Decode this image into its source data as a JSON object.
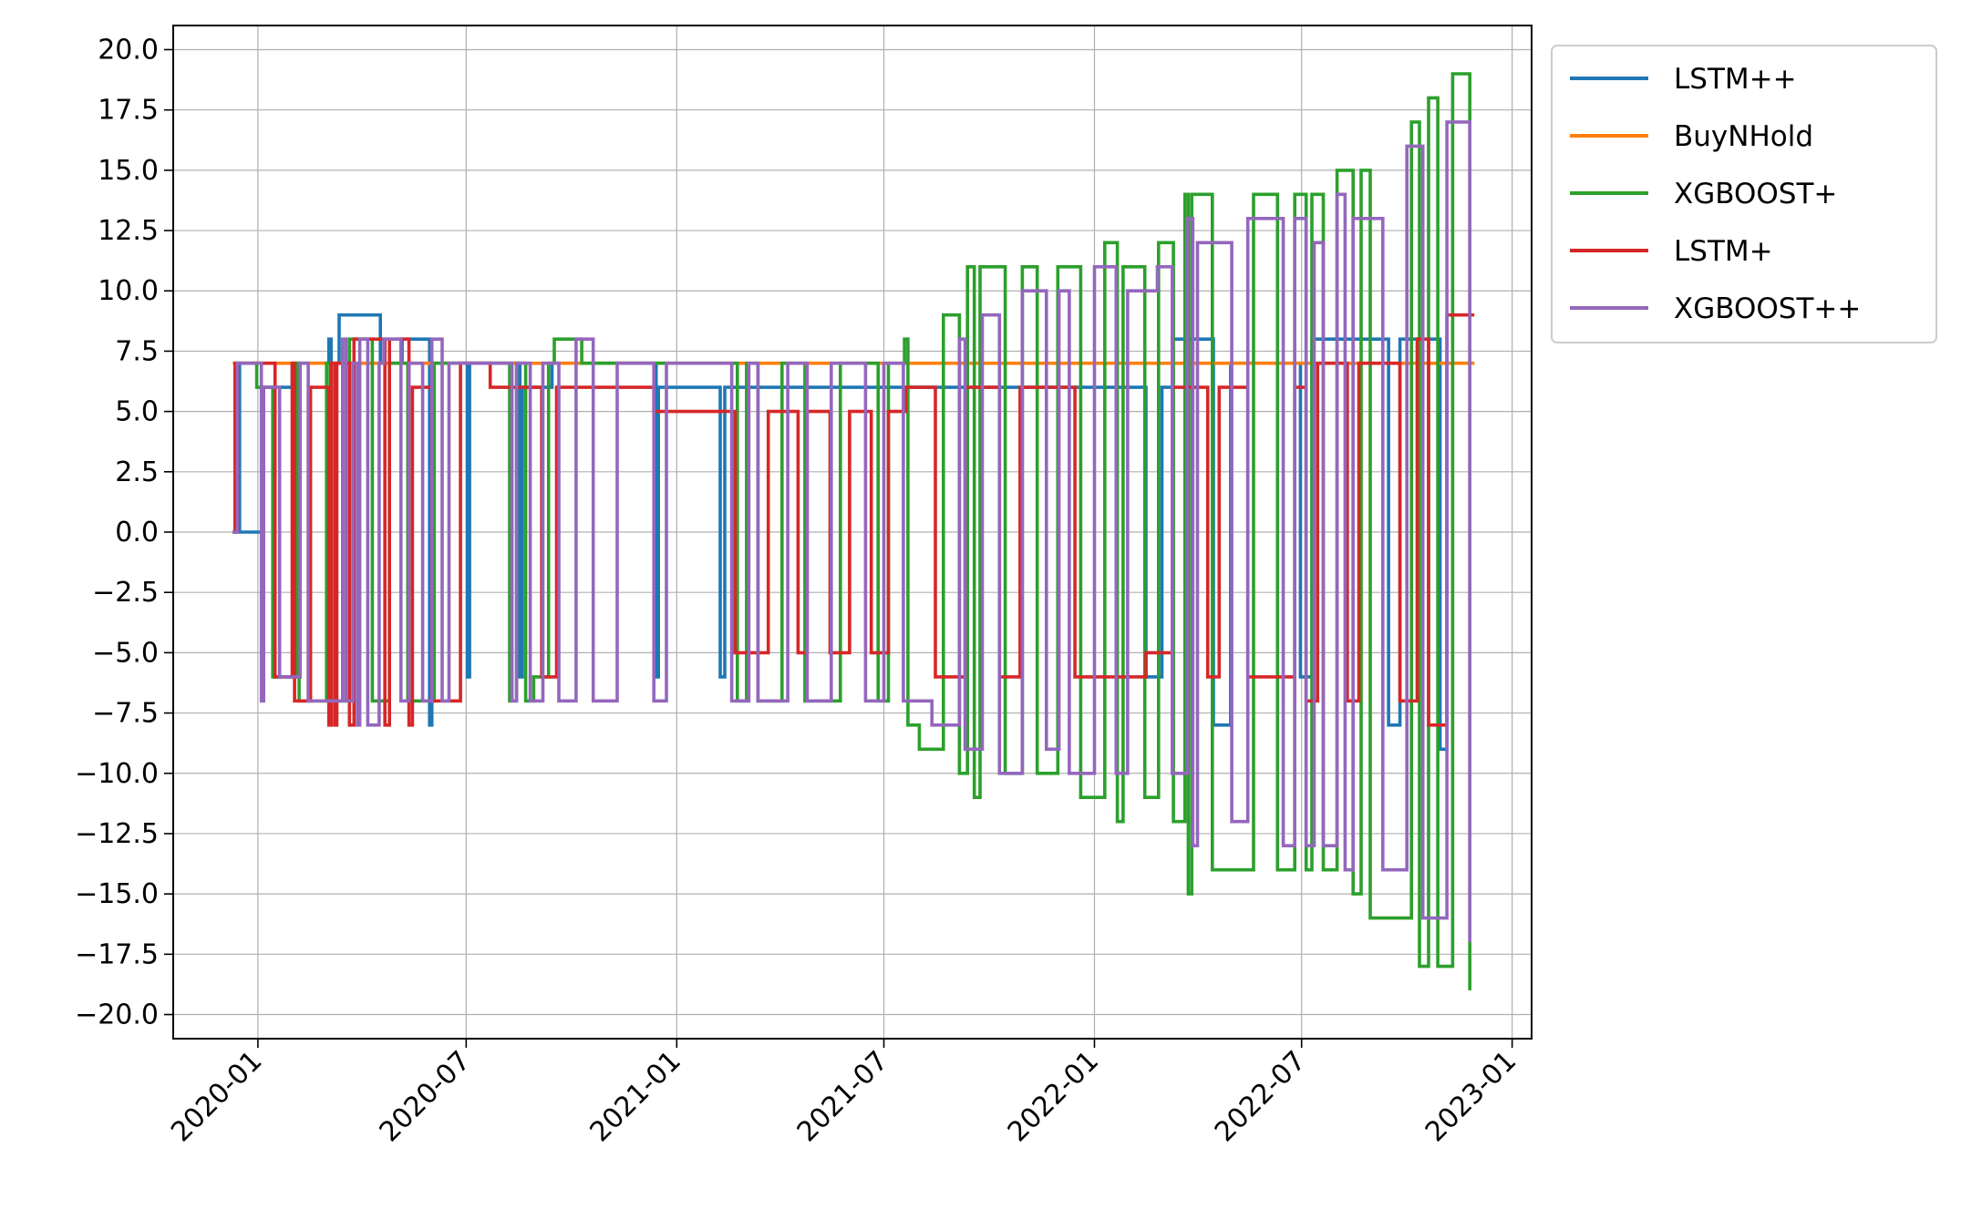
{
  "chart_data": {
    "type": "line",
    "step": true,
    "title": "",
    "xlabel": "",
    "ylabel": "",
    "ylim": [
      -21,
      21
    ],
    "xlim": [
      "2019-10-19",
      "2023-01-18"
    ],
    "grid": true,
    "legend_position": "outside upper right",
    "x_tick_labels": [
      "2020-01",
      "2020-07",
      "2021-01",
      "2021-07",
      "2022-01",
      "2022-07",
      "2023-01"
    ],
    "y_tick_labels": [
      "20.0",
      "17.5",
      "15.0",
      "12.5",
      "10.0",
      "7.5",
      "5.0",
      "2.5",
      "0.0",
      "−2.5",
      "−5.0",
      "−7.5",
      "−10.0",
      "−12.5",
      "−15.0",
      "−17.5",
      "−20.0"
    ],
    "series": [
      {
        "name": "LSTM++",
        "color": "#1f77b4",
        "points": [
          [
            "2019-12-10",
            0
          ],
          [
            "2019-12-14",
            7
          ],
          [
            "2019-12-16",
            0
          ],
          [
            "2020-01-06",
            6
          ],
          [
            "2020-01-31",
            7
          ],
          [
            "2020-03-03",
            8
          ],
          [
            "2020-03-05",
            7
          ],
          [
            "2020-03-12",
            9
          ],
          [
            "2020-04-17",
            7
          ],
          [
            "2020-05-06",
            8
          ],
          [
            "2020-05-30",
            -8
          ],
          [
            "2020-06-01",
            7
          ],
          [
            "2020-07-02",
            -6
          ],
          [
            "2020-07-04",
            7
          ],
          [
            "2020-08-17",
            -6
          ],
          [
            "2020-08-19",
            6
          ],
          [
            "2020-09-14",
            7
          ],
          [
            "2020-12-14",
            -6
          ],
          [
            "2020-12-16",
            6
          ],
          [
            "2021-02-08",
            -6
          ],
          [
            "2021-02-12",
            6
          ],
          [
            "2021-07-01",
            6
          ],
          [
            "2021-08-05",
            6
          ],
          [
            "2022-01-05",
            6
          ],
          [
            "2022-02-15",
            -6
          ],
          [
            "2022-03-01",
            6
          ],
          [
            "2022-03-10",
            8
          ],
          [
            "2022-04-15",
            -8
          ],
          [
            "2022-04-30",
            7
          ],
          [
            "2022-06-30",
            -6
          ],
          [
            "2022-07-10",
            8
          ],
          [
            "2022-09-15",
            -8
          ],
          [
            "2022-09-25",
            8
          ],
          [
            "2022-10-30",
            -9
          ],
          [
            "2022-11-05",
            7
          ],
          [
            "2022-11-29",
            7
          ]
        ]
      },
      {
        "name": "BuyNHold",
        "color": "#ff7f0e",
        "points": [
          [
            "2019-12-10",
            7
          ],
          [
            "2022-11-29",
            7
          ]
        ]
      },
      {
        "name": "XGBOOST+",
        "color": "#2ca02c",
        "points": [
          [
            "2019-12-10",
            0
          ],
          [
            "2019-12-13",
            7
          ],
          [
            "2019-12-31",
            6
          ],
          [
            "2020-01-14",
            -6
          ],
          [
            "2020-02-04",
            7
          ],
          [
            "2020-02-06",
            -7
          ],
          [
            "2020-03-01",
            7
          ],
          [
            "2020-03-04",
            -7
          ],
          [
            "2020-03-21",
            8
          ],
          [
            "2020-04-10",
            -7
          ],
          [
            "2020-04-25",
            7
          ],
          [
            "2020-05-11",
            -7
          ],
          [
            "2020-06-03",
            7
          ],
          [
            "2020-07-04",
            7
          ],
          [
            "2020-08-08",
            -7
          ],
          [
            "2020-08-14",
            7
          ],
          [
            "2020-08-22",
            -7
          ],
          [
            "2020-08-29",
            -6
          ],
          [
            "2020-09-11",
            7
          ],
          [
            "2020-09-16",
            8
          ],
          [
            "2020-10-10",
            7
          ],
          [
            "2021-01-20",
            7
          ],
          [
            "2021-02-23",
            -7
          ],
          [
            "2021-03-03",
            7
          ],
          [
            "2021-03-13",
            -7
          ],
          [
            "2021-04-03",
            7
          ],
          [
            "2021-04-23",
            -7
          ],
          [
            "2021-05-24",
            7
          ],
          [
            "2021-06-26",
            -7
          ],
          [
            "2021-07-05",
            7
          ],
          [
            "2021-07-10",
            7
          ],
          [
            "2021-07-19",
            8
          ],
          [
            "2021-07-22",
            -8
          ],
          [
            "2021-08-01",
            -9
          ],
          [
            "2021-08-22",
            9
          ],
          [
            "2021-09-05",
            -10
          ],
          [
            "2021-09-12",
            11
          ],
          [
            "2021-09-18",
            -11
          ],
          [
            "2021-09-23",
            11
          ],
          [
            "2021-10-15",
            -10
          ],
          [
            "2021-10-30",
            11
          ],
          [
            "2021-11-12",
            -10
          ],
          [
            "2021-11-30",
            11
          ],
          [
            "2021-12-20",
            -11
          ],
          [
            "2022-01-10",
            12
          ],
          [
            "2022-01-21",
            -12
          ],
          [
            "2022-01-26",
            11
          ],
          [
            "2022-02-14",
            -11
          ],
          [
            "2022-02-26",
            12
          ],
          [
            "2022-03-11",
            -12
          ],
          [
            "2022-03-21",
            14
          ],
          [
            "2022-03-24",
            -15
          ],
          [
            "2022-03-27",
            14
          ],
          [
            "2022-04-14",
            -14
          ],
          [
            "2022-05-20",
            14
          ],
          [
            "2022-06-10",
            -14
          ],
          [
            "2022-06-25",
            14
          ],
          [
            "2022-07-05",
            -14
          ],
          [
            "2022-07-10",
            14
          ],
          [
            "2022-07-20",
            -14
          ],
          [
            "2022-08-01",
            15
          ],
          [
            "2022-08-15",
            -15
          ],
          [
            "2022-08-22",
            15
          ],
          [
            "2022-08-30",
            -16
          ],
          [
            "2022-10-05",
            17
          ],
          [
            "2022-10-12",
            -18
          ],
          [
            "2022-10-20",
            18
          ],
          [
            "2022-10-28",
            -18
          ],
          [
            "2022-11-10",
            19
          ],
          [
            "2022-11-25",
            -19
          ]
        ]
      },
      {
        "name": "LSTM+",
        "color": "#d62728",
        "points": [
          [
            "2019-12-10",
            0
          ],
          [
            "2019-12-12",
            7
          ],
          [
            "2019-12-14",
            7
          ],
          [
            "2020-01-16",
            -6
          ],
          [
            "2020-01-31",
            7
          ],
          [
            "2020-02-02",
            -7
          ],
          [
            "2020-02-16",
            6
          ],
          [
            "2020-03-03",
            -8
          ],
          [
            "2020-03-05",
            7
          ],
          [
            "2020-03-08",
            -8
          ],
          [
            "2020-03-10",
            7
          ],
          [
            "2020-03-21",
            -8
          ],
          [
            "2020-03-25",
            8
          ],
          [
            "2020-04-21",
            -8
          ],
          [
            "2020-04-25",
            8
          ],
          [
            "2020-05-12",
            -8
          ],
          [
            "2020-05-15",
            6
          ],
          [
            "2020-06-01",
            -7
          ],
          [
            "2020-06-26",
            7
          ],
          [
            "2020-07-22",
            6
          ],
          [
            "2020-09-05",
            -6
          ],
          [
            "2020-09-18",
            6
          ],
          [
            "2020-12-12",
            5
          ],
          [
            "2021-02-21",
            -5
          ],
          [
            "2021-03-22",
            5
          ],
          [
            "2021-04-17",
            -5
          ],
          [
            "2021-04-25",
            5
          ],
          [
            "2021-05-15",
            -5
          ],
          [
            "2021-06-01",
            5
          ],
          [
            "2021-06-20",
            -5
          ],
          [
            "2021-07-05",
            5
          ],
          [
            "2021-07-20",
            6
          ],
          [
            "2021-08-15",
            -6
          ],
          [
            "2021-09-10",
            6
          ],
          [
            "2021-10-10",
            -6
          ],
          [
            "2021-10-28",
            6
          ],
          [
            "2021-12-15",
            -6
          ],
          [
            "2022-02-15",
            -5
          ],
          [
            "2022-03-10",
            6
          ],
          [
            "2022-04-10",
            -6
          ],
          [
            "2022-04-20",
            6
          ],
          [
            "2022-05-15",
            -6
          ],
          [
            "2022-06-25",
            6
          ],
          [
            "2022-07-05",
            -7
          ],
          [
            "2022-07-15",
            7
          ],
          [
            "2022-08-10",
            -7
          ],
          [
            "2022-08-20",
            7
          ],
          [
            "2022-09-25",
            -7
          ],
          [
            "2022-10-10",
            8
          ],
          [
            "2022-10-20",
            -8
          ],
          [
            "2022-11-05",
            9
          ],
          [
            "2022-11-29",
            9
          ]
        ]
      },
      {
        "name": "XGBOOST++",
        "color": "#9467bd",
        "points": [
          [
            "2019-12-10",
            0
          ],
          [
            "2019-12-14",
            7
          ],
          [
            "2020-01-04",
            -7
          ],
          [
            "2020-01-06",
            6
          ],
          [
            "2020-01-20",
            -6
          ],
          [
            "2020-02-07",
            7
          ],
          [
            "2020-02-14",
            -7
          ],
          [
            "2020-03-15",
            8
          ],
          [
            "2020-03-18",
            -7
          ],
          [
            "2020-03-24",
            7
          ],
          [
            "2020-03-28",
            -8
          ],
          [
            "2020-03-30",
            8
          ],
          [
            "2020-04-06",
            -8
          ],
          [
            "2020-04-16",
            7
          ],
          [
            "2020-04-20",
            8
          ],
          [
            "2020-05-05",
            -7
          ],
          [
            "2020-05-12",
            7
          ],
          [
            "2020-05-24",
            -7
          ],
          [
            "2020-06-01",
            8
          ],
          [
            "2020-06-10",
            -7
          ],
          [
            "2020-06-16",
            7
          ],
          [
            "2020-08-10",
            -7
          ],
          [
            "2020-08-14",
            7
          ],
          [
            "2020-08-26",
            -7
          ],
          [
            "2020-09-06",
            7
          ],
          [
            "2020-09-20",
            -7
          ],
          [
            "2020-10-05",
            8
          ],
          [
            "2020-10-20",
            -7
          ],
          [
            "2020-11-10",
            7
          ],
          [
            "2020-12-12",
            -7
          ],
          [
            "2020-12-23",
            7
          ],
          [
            "2021-02-18",
            -7
          ],
          [
            "2021-03-05",
            7
          ],
          [
            "2021-03-13",
            -7
          ],
          [
            "2021-04-08",
            7
          ],
          [
            "2021-04-25",
            -7
          ],
          [
            "2021-05-16",
            7
          ],
          [
            "2021-06-15",
            -7
          ],
          [
            "2021-07-01",
            7
          ],
          [
            "2021-07-18",
            -7
          ],
          [
            "2021-08-12",
            -8
          ],
          [
            "2021-09-05",
            8
          ],
          [
            "2021-09-10",
            -9
          ],
          [
            "2021-09-25",
            9
          ],
          [
            "2021-10-10",
            -10
          ],
          [
            "2021-10-30",
            10
          ],
          [
            "2021-11-20",
            -9
          ],
          [
            "2021-12-01",
            10
          ],
          [
            "2021-12-10",
            -10
          ],
          [
            "2022-01-01",
            11
          ],
          [
            "2022-01-20",
            -10
          ],
          [
            "2022-01-30",
            10
          ],
          [
            "2022-02-25",
            11
          ],
          [
            "2022-03-10",
            -10
          ],
          [
            "2022-03-23",
            13
          ],
          [
            "2022-03-28",
            -13
          ],
          [
            "2022-04-01",
            12
          ],
          [
            "2022-05-01",
            -12
          ],
          [
            "2022-05-15",
            13
          ],
          [
            "2022-06-15",
            -13
          ],
          [
            "2022-06-25",
            13
          ],
          [
            "2022-07-05",
            -13
          ],
          [
            "2022-07-12",
            12
          ],
          [
            "2022-07-20",
            -13
          ],
          [
            "2022-08-01",
            14
          ],
          [
            "2022-08-08",
            -14
          ],
          [
            "2022-08-15",
            13
          ],
          [
            "2022-09-10",
            -14
          ],
          [
            "2022-10-01",
            16
          ],
          [
            "2022-10-15",
            -16
          ],
          [
            "2022-11-05",
            17
          ],
          [
            "2022-11-25",
            -17
          ]
        ]
      }
    ]
  }
}
